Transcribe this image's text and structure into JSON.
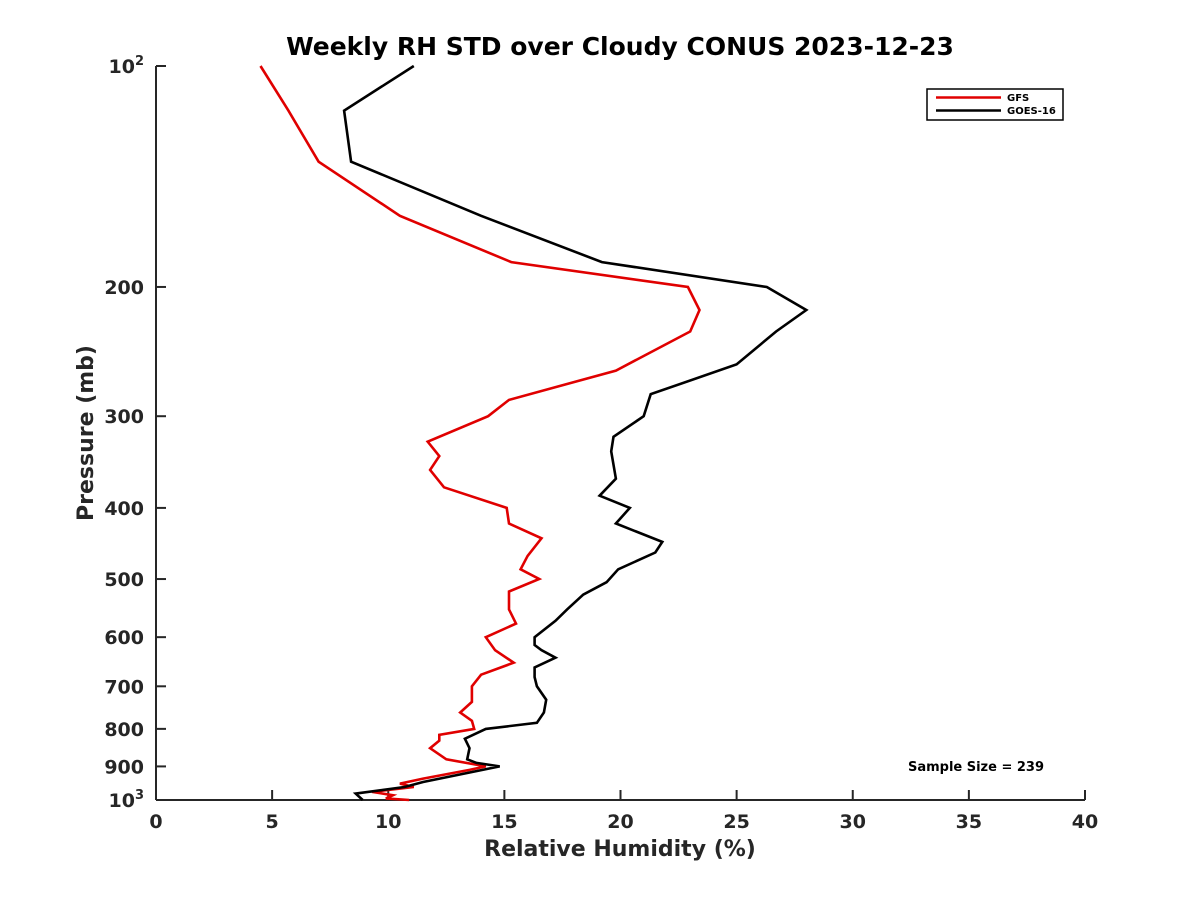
{
  "chart_data": {
    "type": "line",
    "title": "Weekly RH STD over Cloudy CONUS 2023-12-23",
    "xlabel": "Relative Humidity (%)",
    "ylabel": "Pressure (mb)",
    "xlim": [
      0,
      40
    ],
    "ylim": [
      1000,
      100
    ],
    "y_scale": "log",
    "y_reversed": true,
    "grid": false,
    "x_ticks": [
      "0",
      "5",
      "10",
      "15",
      "20",
      "25",
      "30",
      "35",
      "40"
    ],
    "y_ticks": [
      {
        "value": 100,
        "base": "10",
        "exp": "2"
      },
      {
        "value": 200,
        "label": "200"
      },
      {
        "value": 300,
        "label": "300"
      },
      {
        "value": 400,
        "label": "400"
      },
      {
        "value": 500,
        "label": "500"
      },
      {
        "value": 600,
        "label": "600"
      },
      {
        "value": 700,
        "label": "700"
      },
      {
        "value": 800,
        "label": "800"
      },
      {
        "value": 900,
        "label": "900"
      },
      {
        "value": 1000,
        "base": "10",
        "exp": "3"
      }
    ],
    "legend": {
      "position": "top-right"
    },
    "annotation": "Sample Size = 239",
    "series": [
      {
        "name": "GFS",
        "color": "#e00000",
        "points": [
          [
            4.5,
            100
          ],
          [
            5.7,
            115
          ],
          [
            7.0,
            135
          ],
          [
            10.5,
            160
          ],
          [
            15.3,
            185
          ],
          [
            22.9,
            200
          ],
          [
            23.4,
            215
          ],
          [
            23.0,
            230
          ],
          [
            19.8,
            260
          ],
          [
            15.2,
            285
          ],
          [
            14.3,
            300
          ],
          [
            11.7,
            325
          ],
          [
            12.2,
            340
          ],
          [
            11.8,
            355
          ],
          [
            12.4,
            375
          ],
          [
            15.1,
            400
          ],
          [
            15.2,
            420
          ],
          [
            16.6,
            440
          ],
          [
            16.0,
            465
          ],
          [
            15.7,
            485
          ],
          [
            16.5,
            500
          ],
          [
            15.2,
            520
          ],
          [
            15.2,
            550
          ],
          [
            15.5,
            575
          ],
          [
            14.2,
            600
          ],
          [
            14.6,
            625
          ],
          [
            15.4,
            650
          ],
          [
            14.0,
            675
          ],
          [
            13.6,
            700
          ],
          [
            13.6,
            735
          ],
          [
            13.1,
            760
          ],
          [
            13.6,
            780
          ],
          [
            13.7,
            800
          ],
          [
            12.2,
            815
          ],
          [
            12.2,
            830
          ],
          [
            11.8,
            850
          ],
          [
            12.5,
            880
          ],
          [
            14.2,
            900
          ],
          [
            13.5,
            910
          ],
          [
            11.5,
            935
          ],
          [
            10.5,
            950
          ],
          [
            11.1,
            960
          ],
          [
            9.3,
            975
          ],
          [
            10.2,
            985
          ],
          [
            9.9,
            995
          ],
          [
            10.9,
            1000
          ]
        ]
      },
      {
        "name": "GOES-16",
        "color": "#000000",
        "points": [
          [
            11.1,
            100
          ],
          [
            8.1,
            115
          ],
          [
            8.4,
            135
          ],
          [
            14.0,
            160
          ],
          [
            19.2,
            185
          ],
          [
            26.3,
            200
          ],
          [
            28.0,
            215
          ],
          [
            26.7,
            230
          ],
          [
            25.0,
            255
          ],
          [
            21.3,
            280
          ],
          [
            21.0,
            300
          ],
          [
            19.7,
            320
          ],
          [
            19.6,
            335
          ],
          [
            19.8,
            365
          ],
          [
            19.1,
            385
          ],
          [
            20.4,
            400
          ],
          [
            19.8,
            420
          ],
          [
            21.8,
            445
          ],
          [
            21.5,
            460
          ],
          [
            19.9,
            485
          ],
          [
            19.4,
            505
          ],
          [
            18.4,
            525
          ],
          [
            17.7,
            550
          ],
          [
            17.2,
            570
          ],
          [
            16.3,
            600
          ],
          [
            16.3,
            615
          ],
          [
            16.6,
            625
          ],
          [
            17.2,
            640
          ],
          [
            16.3,
            660
          ],
          [
            16.3,
            680
          ],
          [
            16.4,
            700
          ],
          [
            16.8,
            730
          ],
          [
            16.7,
            760
          ],
          [
            16.4,
            785
          ],
          [
            14.2,
            800
          ],
          [
            13.3,
            825
          ],
          [
            13.5,
            850
          ],
          [
            13.4,
            880
          ],
          [
            13.8,
            890
          ],
          [
            14.8,
            900
          ],
          [
            11.5,
            945
          ],
          [
            10.7,
            960
          ],
          [
            8.6,
            980
          ],
          [
            8.9,
            1000
          ]
        ]
      }
    ]
  }
}
